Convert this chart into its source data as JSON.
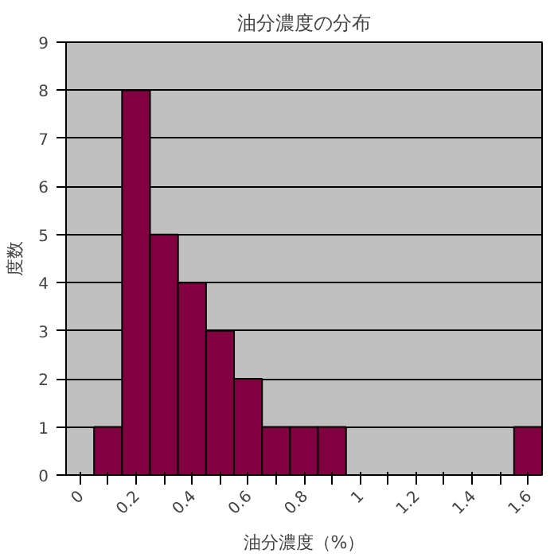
{
  "chart_data": {
    "type": "bar",
    "title": "油分濃度の分布",
    "xlabel": "油分濃度（%）",
    "ylabel": "度数",
    "categories": [
      "0",
      null,
      "0.2",
      null,
      "0.4",
      null,
      "0.6",
      null,
      "0.8",
      null,
      "1",
      null,
      "1.2",
      null,
      "1.4",
      null,
      "1.6"
    ],
    "values": [
      0,
      1,
      8,
      5,
      4,
      3,
      2,
      1,
      1,
      1,
      0,
      0,
      0,
      0,
      0,
      0,
      1
    ],
    "color": "#800040",
    "ylim": [
      0,
      9
    ],
    "yticks": [
      0,
      1,
      2,
      3,
      4,
      5,
      6,
      7,
      8,
      9
    ],
    "grid": "y"
  }
}
